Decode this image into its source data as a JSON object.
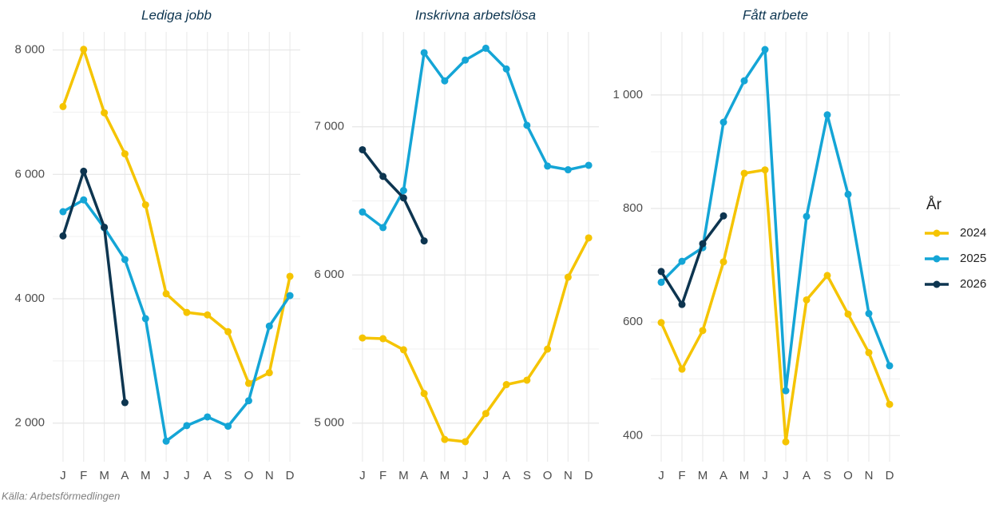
{
  "chart_data": [
    {
      "type": "line",
      "title": "Lediga jobb",
      "categories": [
        "J",
        "F",
        "M",
        "A",
        "M",
        "J",
        "J",
        "A",
        "S",
        "O",
        "N",
        "D"
      ],
      "ylim": [
        1380,
        8290
      ],
      "yticks": [
        {
          "value": 2000,
          "label": "2 000"
        },
        {
          "value": 4000,
          "label": "4 000"
        },
        {
          "value": 6000,
          "label": "6 000"
        },
        {
          "value": 8000,
          "label": "8 000"
        }
      ],
      "grid": true,
      "series": [
        {
          "name": "2024",
          "color": "#f5c400",
          "values": [
            7090,
            8010,
            6990,
            6330,
            5510,
            4080,
            3780,
            3740,
            3470,
            2640,
            2810,
            4360
          ]
        },
        {
          "name": "2025",
          "color": "#14a5d6",
          "values": [
            5400,
            5590,
            5140,
            4630,
            3680,
            1710,
            1960,
            2100,
            1950,
            2360,
            3560,
            4050
          ]
        },
        {
          "name": "2026",
          "color": "#0d3550",
          "values": [
            5010,
            6050,
            5150,
            2330,
            null,
            null,
            null,
            null,
            null,
            null,
            null,
            null
          ]
        }
      ]
    },
    {
      "type": "line",
      "title": "Inskrivna arbetslösa",
      "categories": [
        "J",
        "F",
        "M",
        "A",
        "M",
        "J",
        "J",
        "A",
        "S",
        "O",
        "N",
        "D"
      ],
      "ylim": [
        4740,
        7640
      ],
      "yticks": [
        {
          "value": 5000,
          "label": "5 000"
        },
        {
          "value": 6000,
          "label": "6 000"
        },
        {
          "value": 7000,
          "label": "7 000"
        }
      ],
      "grid": true,
      "series": [
        {
          "name": "2024",
          "color": "#f5c400",
          "values": [
            5575,
            5570,
            5495,
            5200,
            4890,
            4875,
            5065,
            5260,
            5290,
            5500,
            5985,
            6250
          ]
        },
        {
          "name": "2025",
          "color": "#14a5d6",
          "values": [
            6425,
            6320,
            6570,
            7500,
            7310,
            7450,
            7530,
            7390,
            7010,
            6735,
            6710,
            6740
          ]
        },
        {
          "name": "2026",
          "color": "#0d3550",
          "values": [
            6845,
            6665,
            6520,
            6230,
            null,
            null,
            null,
            null,
            null,
            null,
            null,
            null
          ]
        }
      ]
    },
    {
      "type": "line",
      "title": "Fått arbete",
      "categories": [
        "J",
        "F",
        "M",
        "A",
        "M",
        "J",
        "J",
        "A",
        "S",
        "O",
        "N",
        "D"
      ],
      "ylim": [
        354,
        1111
      ],
      "yticks": [
        400,
        600,
        800,
        {
          "value": 1000,
          "label": "1 000"
        }
      ],
      "grid": true,
      "series": [
        {
          "name": "2024",
          "color": "#f5c400",
          "values": [
            599,
            517,
            585,
            706,
            862,
            868,
            389,
            639,
            682,
            614,
            546,
            455
          ]
        },
        {
          "name": "2025",
          "color": "#14a5d6",
          "values": [
            670,
            707,
            731,
            952,
            1025,
            1080,
            479,
            786,
            965,
            825,
            615,
            523
          ]
        },
        {
          "name": "2026",
          "color": "#0d3550",
          "values": [
            689,
            631,
            738,
            787,
            null,
            null,
            null,
            null,
            null,
            null,
            null,
            null
          ]
        }
      ]
    }
  ],
  "legend_title": "År",
  "source": "Källa: Arbetsförmedlingen"
}
